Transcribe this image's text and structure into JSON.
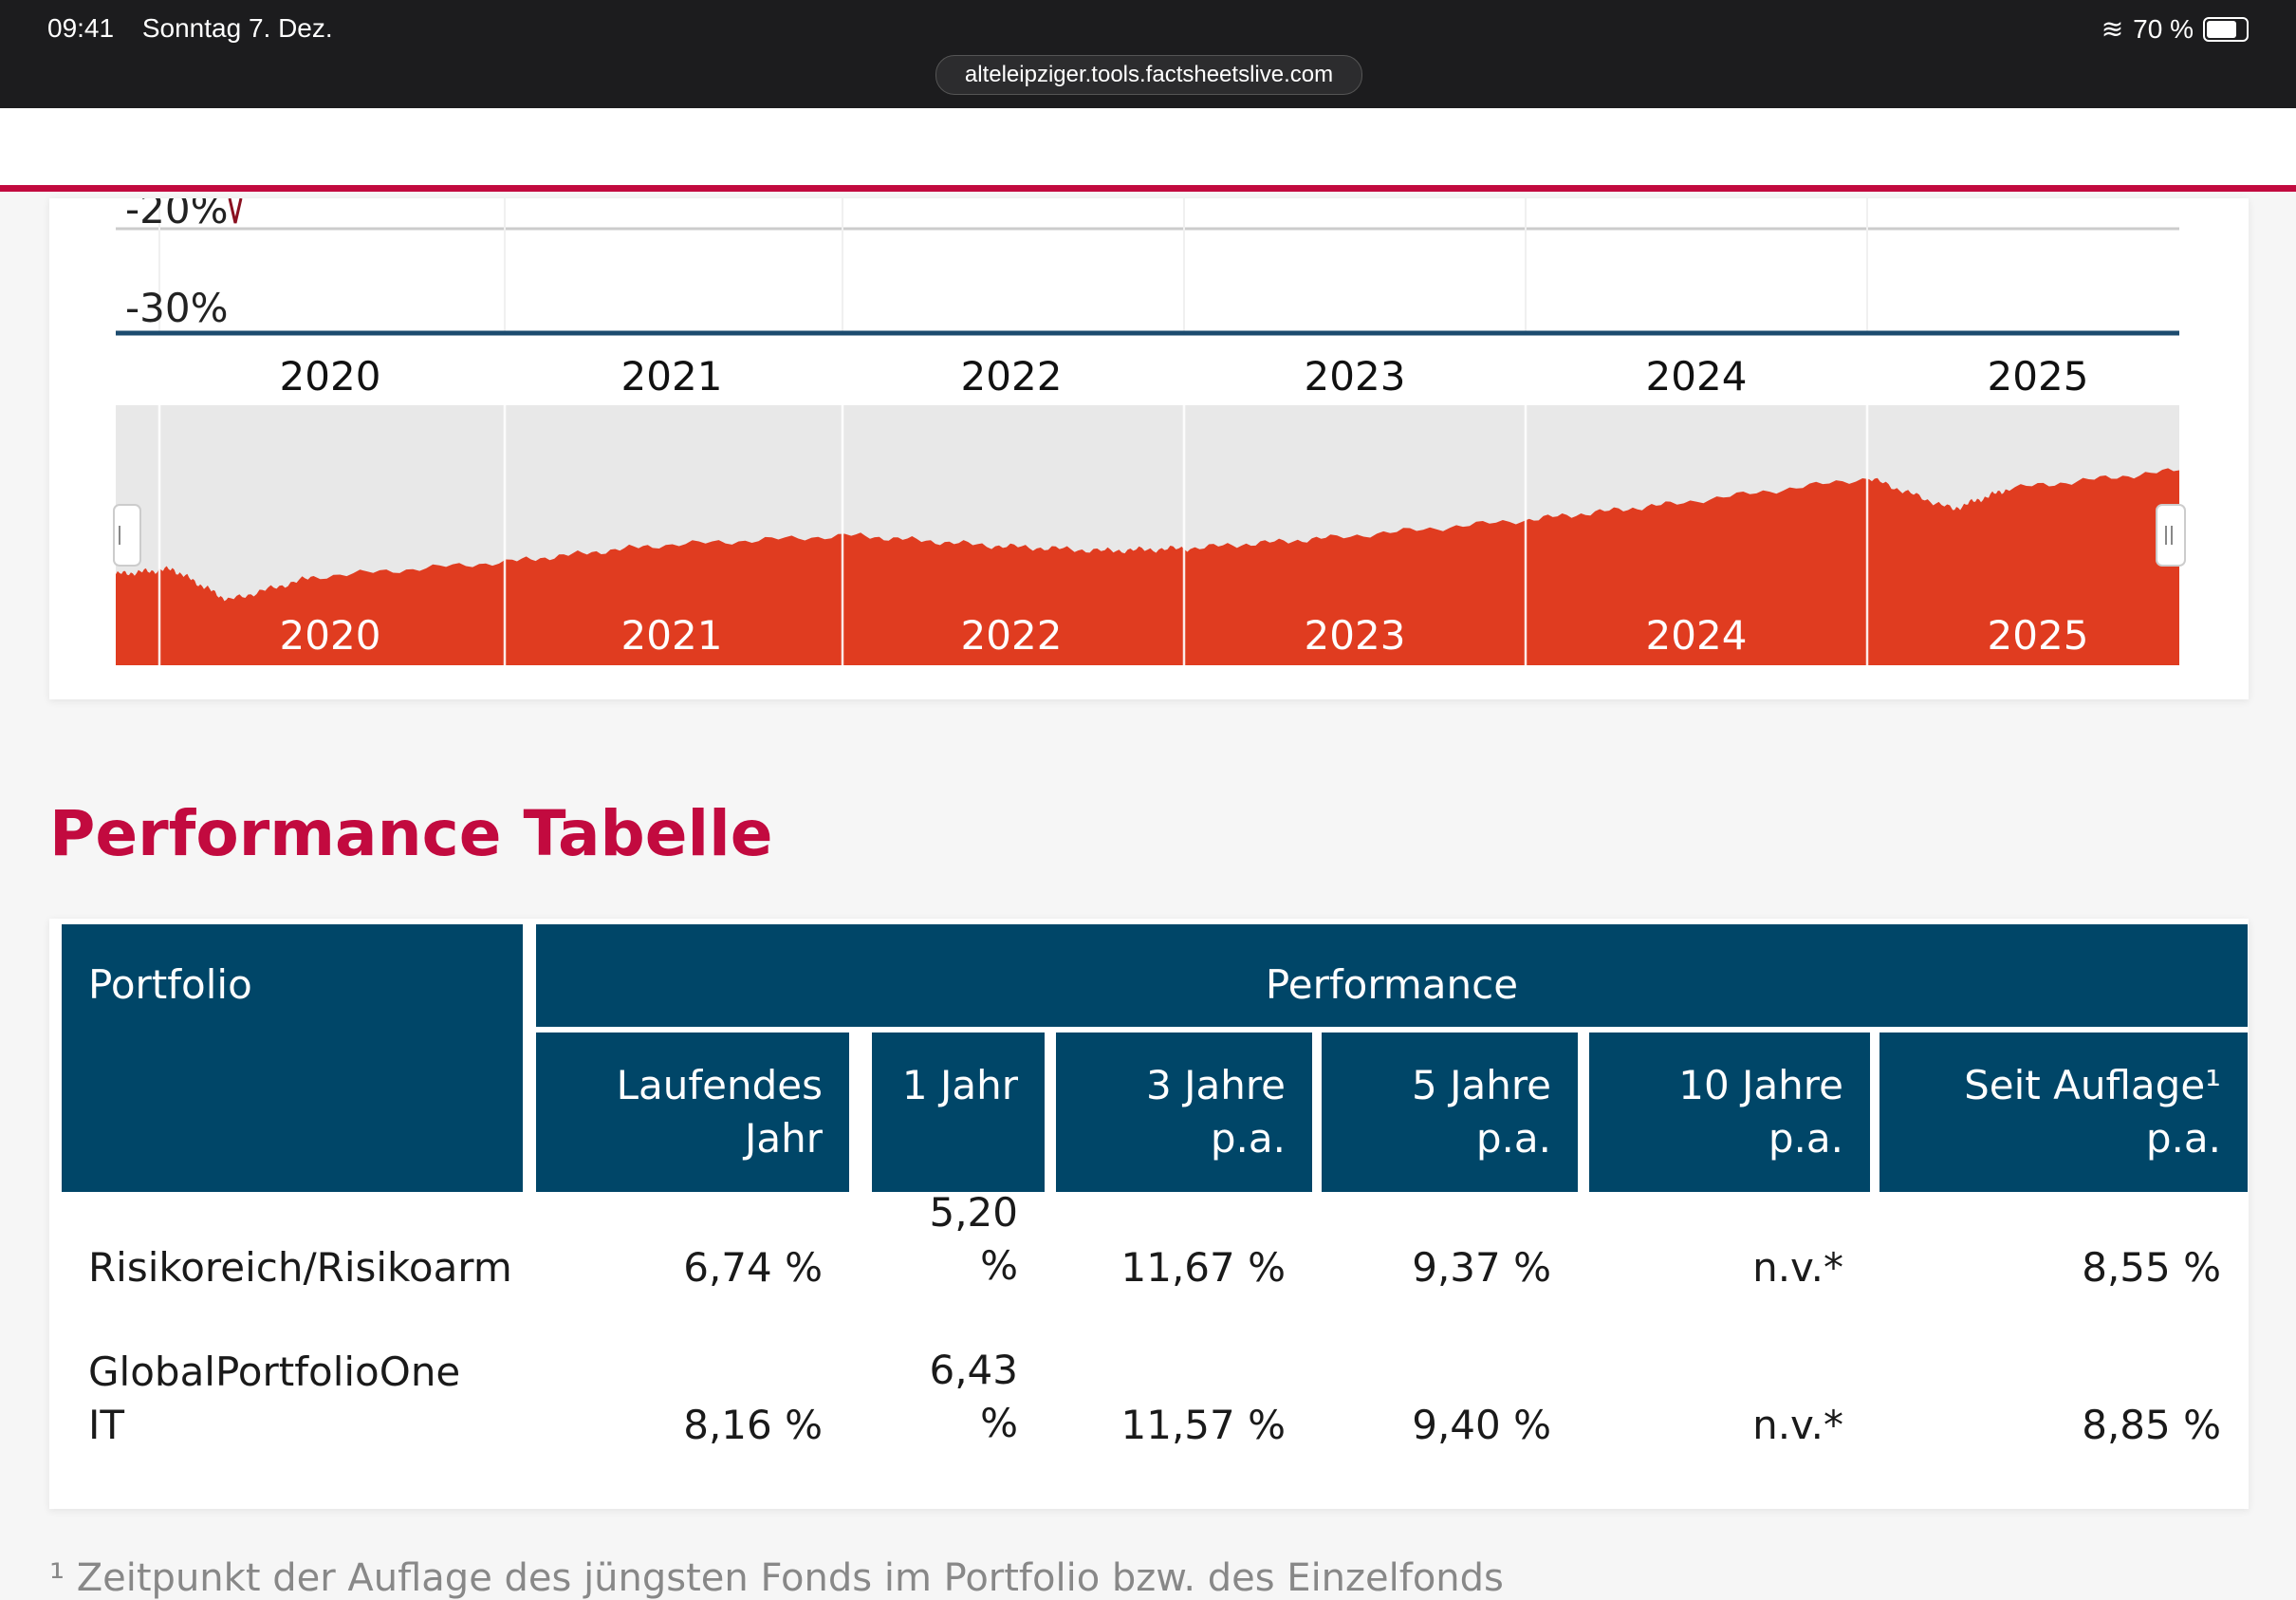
{
  "status_bar": {
    "time": "09:41",
    "date": "Sonntag 7. Dez.",
    "battery": "70 %"
  },
  "browser": {
    "url": "alteleipziger.tools.factsheetslive.com"
  },
  "chart": {
    "y_labels": [
      "-20%",
      "-30%"
    ],
    "x_labels": [
      "2020",
      "2021",
      "2022",
      "2023",
      "2024",
      "2025"
    ],
    "navigator_labels": [
      "2020",
      "2021",
      "2022",
      "2023",
      "2024",
      "2025"
    ]
  },
  "chart_data": {
    "type": "area",
    "title": "",
    "xlabel": "",
    "ylabel": "",
    "x": [
      "2019-11",
      "2020-01",
      "2020-03",
      "2020-06",
      "2021-01",
      "2021-06",
      "2022-01",
      "2022-06",
      "2022-10",
      "2023-01",
      "2023-06",
      "2024-01",
      "2024-06",
      "2025-01",
      "2025-04",
      "2025-06",
      "2025-12"
    ],
    "series": [
      {
        "values": [
          0.35,
          0.37,
          0.25,
          0.34,
          0.4,
          0.46,
          0.5,
          0.46,
          0.44,
          0.45,
          0.49,
          0.56,
          0.62,
          0.72,
          0.6,
          0.68,
          0.75
        ]
      }
    ],
    "grid": true,
    "colors": {
      "area": "#e03c20",
      "navigator_bg": "#e8e8e8",
      "axis_line": "#1c4b6e"
    }
  },
  "performance": {
    "title": "Performance Tabelle",
    "header": {
      "portfolio": "Portfolio",
      "performance": "Performance",
      "columns": [
        {
          "line1": "Laufendes",
          "line2": "Jahr"
        },
        {
          "line1": "1 Jahr",
          "line2": ""
        },
        {
          "line1": "3 Jahre",
          "line2": "p.a."
        },
        {
          "line1": "5 Jahre",
          "line2": "p.a."
        },
        {
          "line1": "10 Jahre",
          "line2": "p.a."
        },
        {
          "line1": "Seit Auflage¹",
          "line2": "p.a."
        }
      ]
    },
    "rows": [
      {
        "name1": "Risikoreich/Risikoarm",
        "name2": "",
        "ytd": "6,74 %",
        "y1a": "5,20",
        "y1b": "%",
        "y3": "11,67 %",
        "y5": "9,37 %",
        "y10": "n.v.*",
        "since": "8,55 %"
      },
      {
        "name1": "GlobalPortfolioOne",
        "name2": "IT",
        "ytd": "8,16 %",
        "y1a": "6,43",
        "y1b": "%",
        "y3": "11,57 %",
        "y5": "9,40 %",
        "y10": "n.v.*",
        "since": "8,85 %"
      }
    ],
    "footnote": "¹ Zeitpunkt der Auflage des jüngsten Fonds im Portfolio bzw. des Einzelfonds"
  },
  "colors": {
    "accent": "#c20a3f",
    "table_header": "#004668"
  }
}
